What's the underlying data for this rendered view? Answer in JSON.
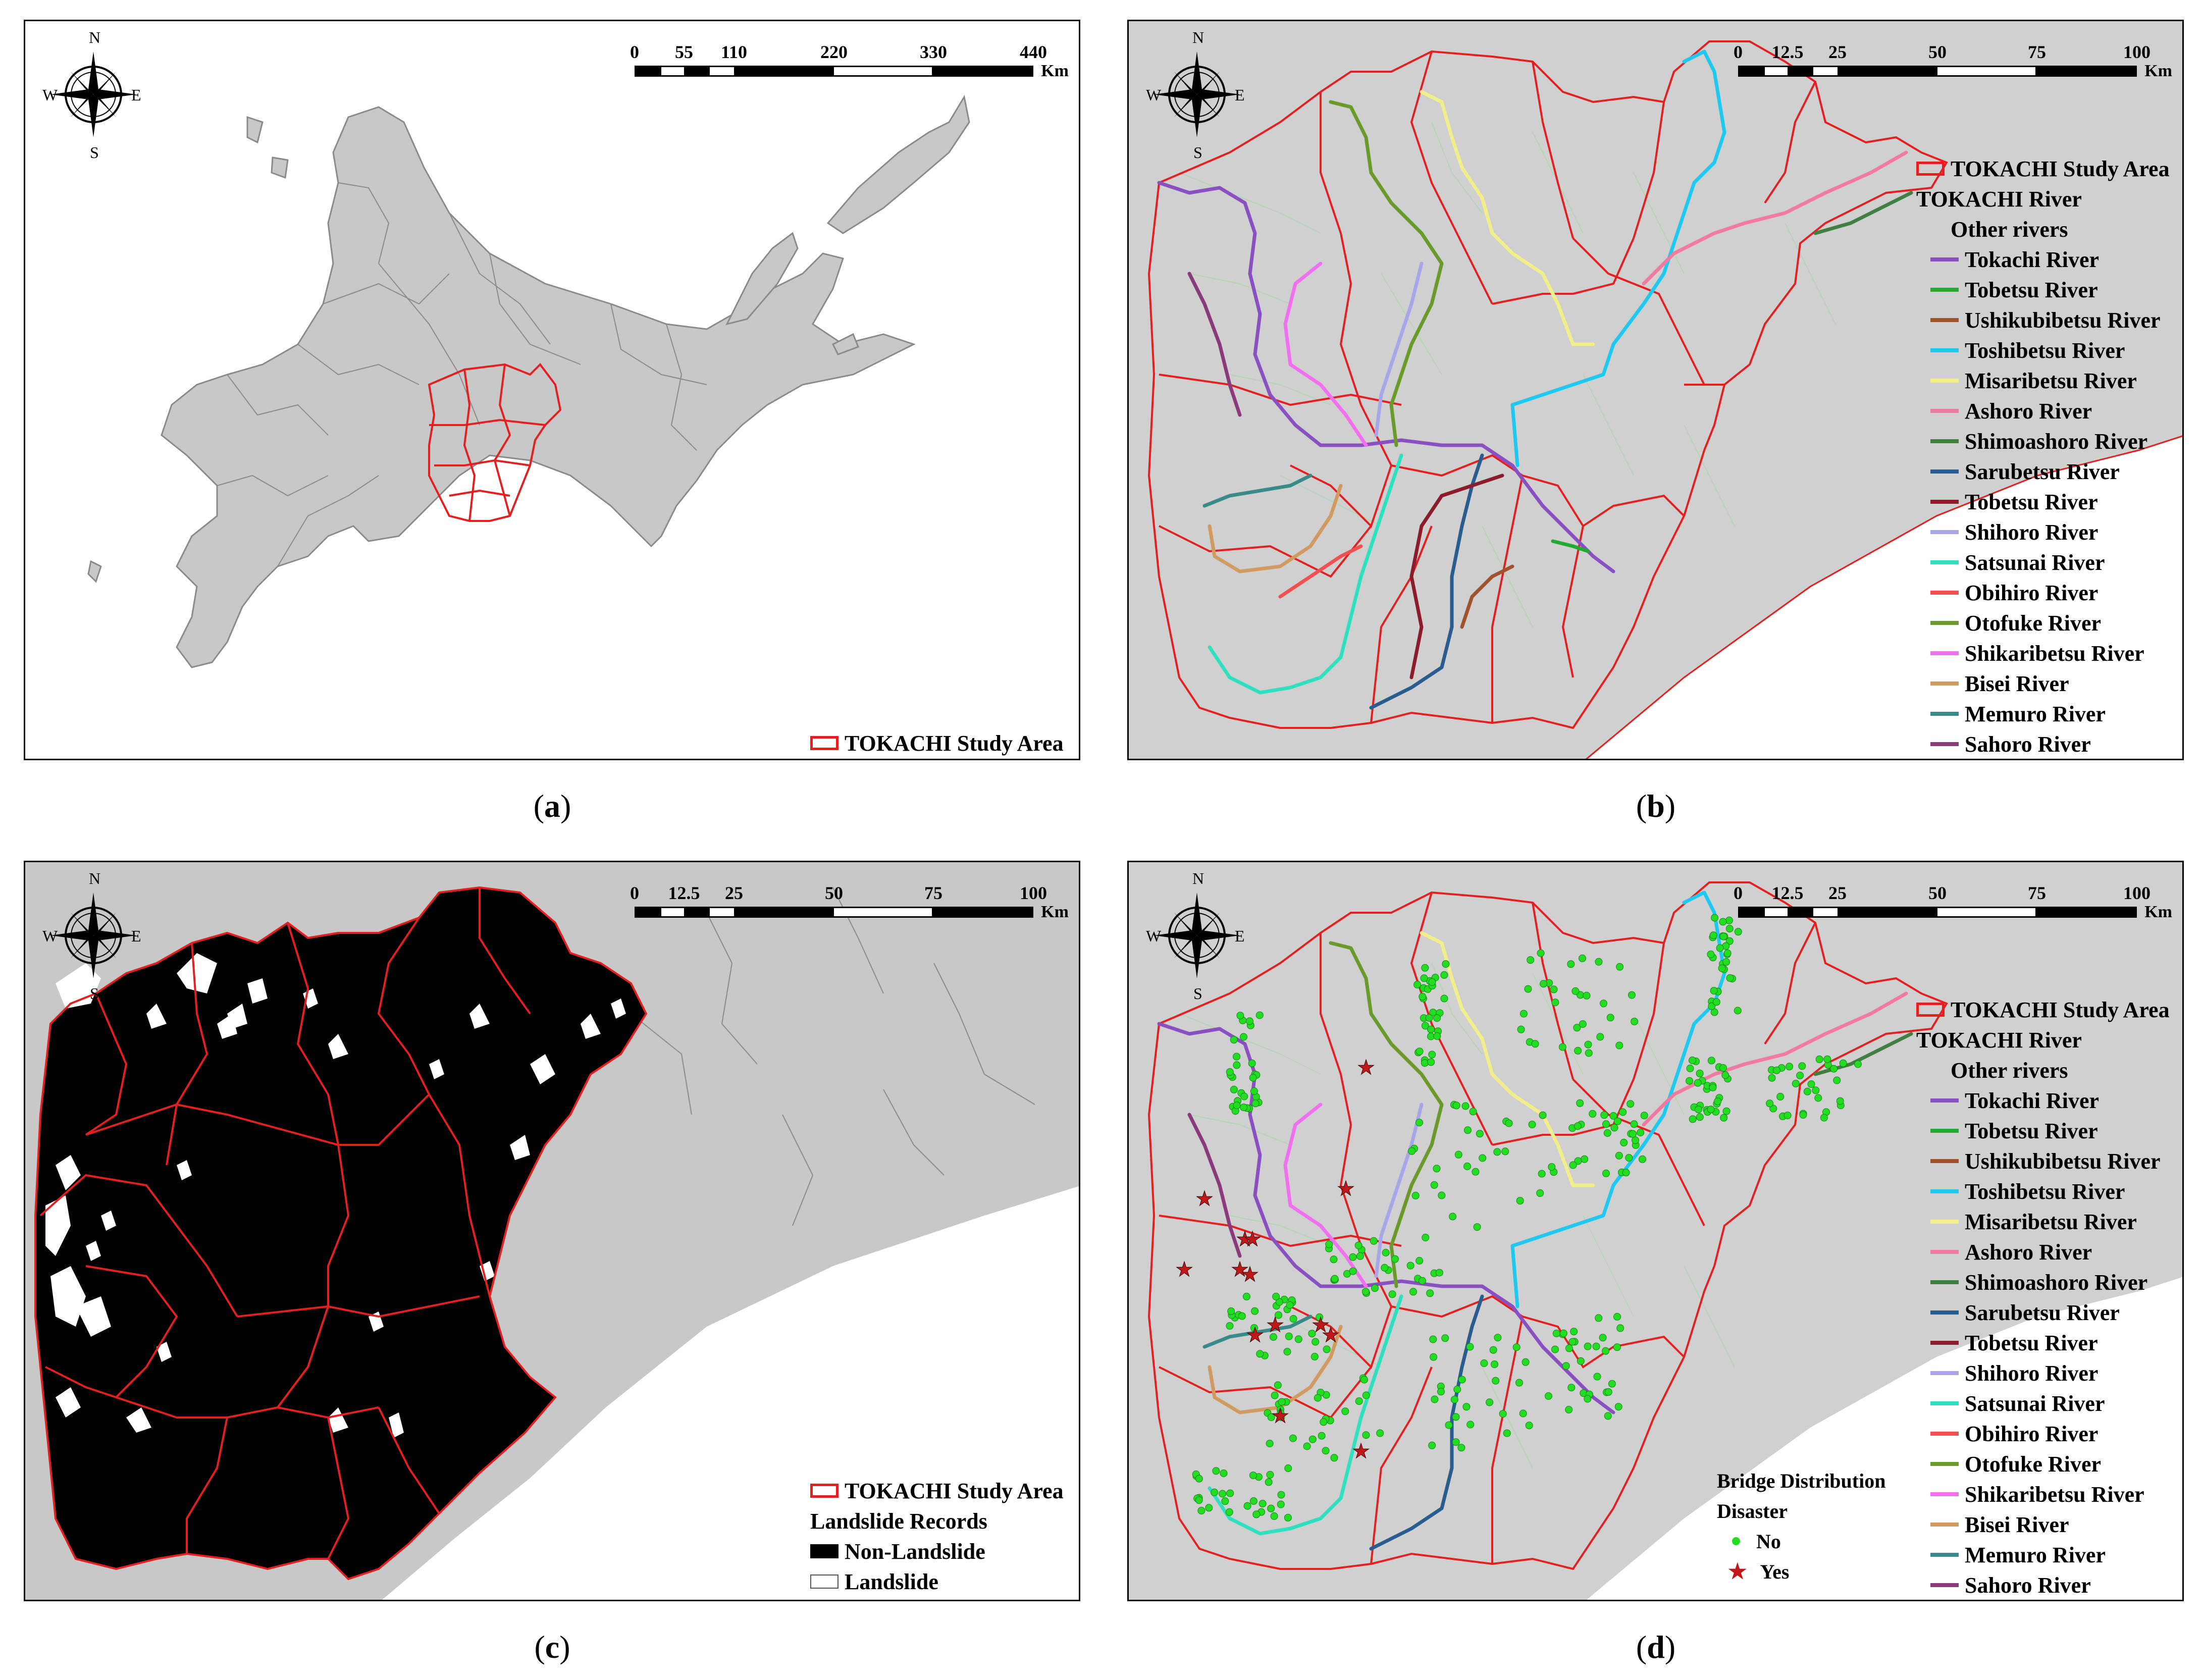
{
  "panels": [
    {
      "id": "a",
      "caption": "a",
      "scale": {
        "ticks": [
          "0",
          "55",
          "110",
          "220",
          "330",
          "440"
        ],
        "unit": "Km"
      },
      "legend": {
        "study_area": "TOKACHI Study Area"
      }
    },
    {
      "id": "b",
      "caption": "b",
      "scale": {
        "ticks": [
          "0",
          "12.5",
          "25",
          "50",
          "75",
          "100"
        ],
        "unit": "Km"
      },
      "legend": {
        "study_area": "TOKACHI Study Area",
        "river_group": "TOKACHI River",
        "other_rivers": "Other rivers"
      }
    },
    {
      "id": "c",
      "caption": "c",
      "scale": {
        "ticks": [
          "0",
          "12.5",
          "25",
          "50",
          "75",
          "100"
        ],
        "unit": "Km"
      },
      "legend": {
        "study_area": "TOKACHI Study Area",
        "records_title": "Landslide Records",
        "non_landslide": "Non-Landslide",
        "landslide": "Landslide"
      }
    },
    {
      "id": "d",
      "caption": "d",
      "scale": {
        "ticks": [
          "0",
          "12.5",
          "25",
          "50",
          "75",
          "100"
        ],
        "unit": "Km"
      },
      "legend": {
        "study_area": "TOKACHI Study Area",
        "river_group": "TOKACHI River",
        "other_rivers": "Other rivers",
        "bridge_title": "Bridge Distribution",
        "disaster_title": "Disaster",
        "no": "No",
        "yes": "Yes"
      }
    }
  ],
  "compass": {
    "n": "N",
    "s": "S",
    "e": "E",
    "w": "W"
  },
  "rivers": [
    {
      "name": "Tokachi River",
      "color": "#8a4fc0"
    },
    {
      "name": "Tobetsu River",
      "color": "#22aa33"
    },
    {
      "name": "Ushikubibetsu River",
      "color": "#a0522d"
    },
    {
      "name": "Toshibetsu River",
      "color": "#1ec8f0"
    },
    {
      "name": "Misaribetsu River",
      "color": "#f2ee8a"
    },
    {
      "name": "Ashoro River",
      "color": "#f07aa0"
    },
    {
      "name": "Shimoashoro River",
      "color": "#3f7f3f"
    },
    {
      "name": "Sarubetsu River",
      "color": "#2a5d8f"
    },
    {
      "name": "Tobetsu River",
      "color": "#8b1c2c"
    },
    {
      "name": "Shihoro River",
      "color": "#a8a6e8"
    },
    {
      "name": "Satsunai River",
      "color": "#2ee0c0"
    },
    {
      "name": "Obihiro River",
      "color": "#f05050"
    },
    {
      "name": "Otofuke River",
      "color": "#6a9a2a"
    },
    {
      "name": "Shikaribetsu River",
      "color": "#f070f0"
    },
    {
      "name": "Bisei River",
      "color": "#d09a60"
    },
    {
      "name": "Memuro River",
      "color": "#3a8a8a"
    },
    {
      "name": "Sahoro River",
      "color": "#8a3a7a"
    }
  ],
  "colors": {
    "boundary": "#e51f1f",
    "land": "#c8c8c8",
    "sea": "#ffffff",
    "bridge_no": "#22dd22",
    "bridge_yes": "#c01818"
  }
}
